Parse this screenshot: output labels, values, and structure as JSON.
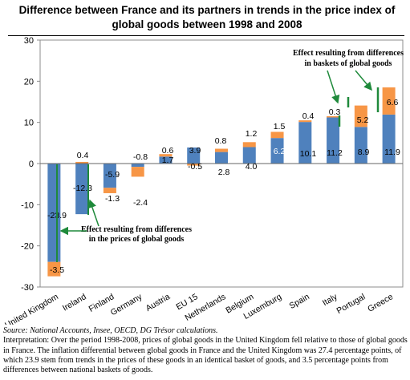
{
  "chart_data": {
    "type": "bar",
    "stacked": true,
    "title": "Difference between France and its partners in trends in the price index of global goods between 1998 and 2008",
    "categories": [
      "United Kingdom",
      "Ireland",
      "Finland",
      "Germany",
      "Austria",
      "EU 15",
      "Netherlands",
      "Belgium",
      "Luxemburg",
      "Spain",
      "Italy",
      "Portugal",
      "Greece"
    ],
    "series": [
      {
        "name": "Effect resulting from differences in the prices of global goods",
        "color": "#4f81bd",
        "values": [
          -23.9,
          -12.3,
          -5.9,
          -0.8,
          1.7,
          3.9,
          2.8,
          4.0,
          6.2,
          10.1,
          11.2,
          8.9,
          11.9
        ]
      },
      {
        "name": "Effect resulting from differences in baskets of global goods",
        "color": "#f79646",
        "values": [
          -3.5,
          0.4,
          -1.3,
          -2.4,
          0.6,
          -0.5,
          0.8,
          1.2,
          1.5,
          0.4,
          0.3,
          5.2,
          6.6
        ]
      }
    ],
    "labels": [
      {
        "text": "-23.9",
        "color": "#000000"
      },
      {
        "text": "-3.5",
        "color": "#000000"
      },
      {
        "text": "0.4",
        "color": "#000000"
      },
      {
        "text": "-12.3",
        "color": "#000000"
      },
      {
        "text": "-5.9",
        "color": "#000000"
      },
      {
        "text": "-1.3",
        "color": "#000000"
      },
      {
        "text": "-0.8",
        "color": "#000000"
      },
      {
        "text": "-2.4",
        "color": "#000000"
      },
      {
        "text": "0.6",
        "color": "#000000"
      },
      {
        "text": "1.7",
        "color": "#000000"
      },
      {
        "text": "3.9",
        "color": "#000000"
      },
      {
        "text": "-0.5",
        "color": "#000000"
      },
      {
        "text": "0.8",
        "color": "#000000"
      },
      {
        "text": "2.8",
        "color": "#000000"
      },
      {
        "text": "1.2",
        "color": "#000000"
      },
      {
        "text": "4.0",
        "color": "#000000"
      },
      {
        "text": "1.5",
        "color": "#000000"
      },
      {
        "text": "6.2",
        "color": "#ffffff"
      },
      {
        "text": "0.4",
        "color": "#000000"
      },
      {
        "text": "10.1",
        "color": "#000000"
      },
      {
        "text": "0.3",
        "color": "#000000"
      },
      {
        "text": "11.2",
        "color": "#000000"
      },
      {
        "text": "5.2",
        "color": "#000000"
      },
      {
        "text": "8.9",
        "color": "#000000"
      },
      {
        "text": "6.6",
        "color": "#000000"
      },
      {
        "text": "11.9",
        "color": "#000000"
      }
    ],
    "annotations": [
      {
        "text": [
          "Effect resulting from differences",
          "in baskets of global goods"
        ]
      },
      {
        "text": [
          "Effect resulting from differences",
          "in the prices of global goods"
        ]
      }
    ],
    "ylim": [
      -30,
      30
    ],
    "yticks": [
      -30,
      -20,
      -10,
      0,
      10,
      20,
      30
    ],
    "xlabel": "",
    "ylabel": "",
    "grid": false,
    "legend": "none"
  },
  "notes": {
    "source": "Source: National Accounts, Insee, OECD, DG Trésor calculations.",
    "interpretation": "Interpretation: Over the period 1998-2008, prices of global goods in the United Kingdom fell relative to those of global goods in France. The inflation differential between global goods in France and the United Kingdom was 27.4 percentage points, of which 23.9 stem from trends in the prices of these goods in an identical basket of goods, and 3.5 percentage points from differences between national baskets of goods."
  }
}
